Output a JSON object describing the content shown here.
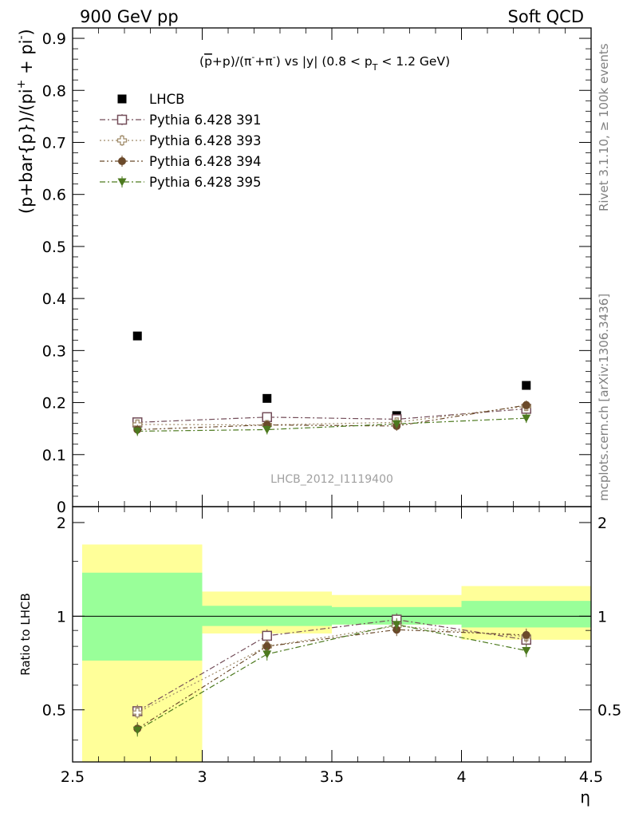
{
  "header": {
    "left": "900 GeV pp",
    "right": "Soft QCD"
  },
  "side_text": {
    "rivet": "Rivet 3.1.10, ≥ 100k events",
    "mcplots": "mcplots.cern.ch [arXiv:1306.3436]"
  },
  "watermark": "LHCB_2012_I1119400",
  "chart_data": [
    {
      "type": "scatter",
      "title": "(p̅+p)/(π⁻+π⁺) vs |y| (0.8 < p_T < 1.2 GeV)",
      "title_parts": {
        "pre": "(",
        "pbar": "p",
        "mid": "+p)/(π",
        "sup1": "-",
        "plus": "+π",
        "sup2": "-",
        "post": ") vs |y| (0.8 < p",
        "sub": "T",
        "end": " < 1.2 GeV)"
      },
      "ylabel": "(p+bar{p})/(pi",
      "ylabel_sup1": "+",
      "ylabel_mid": " + pi",
      "ylabel_sup2": "-",
      "ylabel_end": ")",
      "xlim": [
        2.5,
        4.5
      ],
      "ylim": [
        0,
        0.92
      ],
      "y_ticks": [
        0,
        0.1,
        0.2,
        0.3,
        0.4,
        0.5,
        0.6,
        0.7,
        0.8,
        0.9
      ],
      "y_tick_labels": [
        "0",
        "0.1",
        "0.2",
        "0.3",
        "0.4",
        "0.5",
        "0.6",
        "0.7",
        "0.8",
        "0.9"
      ],
      "legend_position": "top-left",
      "series": [
        {
          "name": "LHCB",
          "color": "#000000",
          "marker": "square-filled",
          "x": [
            2.75,
            3.25,
            3.75,
            4.25
          ],
          "y": [
            0.328,
            0.208,
            0.175,
            0.233
          ]
        },
        {
          "name": "Pythia 6.428 391",
          "color": "#734d59",
          "marker": "square-open",
          "line": "dash-dot",
          "x": [
            2.75,
            3.25,
            3.75,
            4.25
          ],
          "y": [
            0.162,
            0.172,
            0.168,
            0.188
          ]
        },
        {
          "name": "Pythia 6.428 393",
          "color": "#a08c6a",
          "marker": "cross-open",
          "line": "dot",
          "x": [
            2.75,
            3.25,
            3.75,
            4.25
          ],
          "y": [
            0.158,
            0.157,
            0.162,
            0.193
          ]
        },
        {
          "name": "Pythia 6.428 394",
          "color": "#6b4a2b",
          "marker": "circle-filled",
          "line": "dash-dot-dot",
          "x": [
            2.75,
            3.25,
            3.75,
            4.25
          ],
          "y": [
            0.148,
            0.157,
            0.155,
            0.195
          ]
        },
        {
          "name": "Pythia 6.428 395",
          "color": "#4d7a1f",
          "marker": "triangle-down-filled",
          "line": "dash-dot",
          "x": [
            2.75,
            3.25,
            3.75,
            4.25
          ],
          "y": [
            0.145,
            0.148,
            0.159,
            0.17
          ]
        }
      ]
    },
    {
      "type": "scatter",
      "ylabel": "Ratio to LHCB",
      "xlabel": "η",
      "xlim": [
        2.5,
        4.5
      ],
      "ylim": [
        0.34,
        2.25
      ],
      "y_scale": "log",
      "x_ticks": [
        2.5,
        3,
        3.5,
        4,
        4.5
      ],
      "x_tick_labels": [
        "2.5",
        "3",
        "3.5",
        "4",
        "4.5"
      ],
      "y_ticks": [
        0.5,
        1,
        2
      ],
      "y_tick_labels": [
        "0.5",
        "1",
        "2"
      ],
      "reference_line": 1,
      "bins": [
        [
          2.5,
          3.0
        ],
        [
          3.0,
          3.5
        ],
        [
          3.5,
          4.0
        ],
        [
          4.0,
          4.5
        ]
      ],
      "band_stat": [
        [
          0.72,
          1.38
        ],
        [
          0.93,
          1.08
        ],
        [
          0.94,
          1.07
        ],
        [
          0.92,
          1.12
        ]
      ],
      "band_total": [
        [
          0.34,
          1.7
        ],
        [
          0.88,
          1.2
        ],
        [
          0.94,
          1.17
        ],
        [
          0.84,
          1.25
        ]
      ],
      "band_colors": {
        "stat": "#99ff99",
        "total": "#ffff99"
      },
      "series": [
        {
          "name": "Pythia 6.428 391",
          "color": "#734d59",
          "marker": "square-open",
          "x": [
            2.75,
            3.25,
            3.75,
            4.25
          ],
          "y": [
            0.495,
            0.865,
            0.975,
            0.84
          ]
        },
        {
          "name": "Pythia 6.428 393",
          "color": "#a08c6a",
          "marker": "cross-open",
          "x": [
            2.75,
            3.25,
            3.75,
            4.25
          ],
          "y": [
            0.49,
            0.8,
            0.93,
            0.86
          ]
        },
        {
          "name": "Pythia 6.428 394",
          "color": "#6b4a2b",
          "marker": "circle-filled",
          "x": [
            2.75,
            3.25,
            3.75,
            4.25
          ],
          "y": [
            0.435,
            0.8,
            0.905,
            0.87
          ]
        },
        {
          "name": "Pythia 6.428 395",
          "color": "#4d7a1f",
          "marker": "triangle-down-filled",
          "x": [
            2.75,
            3.25,
            3.75,
            4.25
          ],
          "y": [
            0.43,
            0.755,
            0.94,
            0.775
          ]
        }
      ]
    }
  ]
}
